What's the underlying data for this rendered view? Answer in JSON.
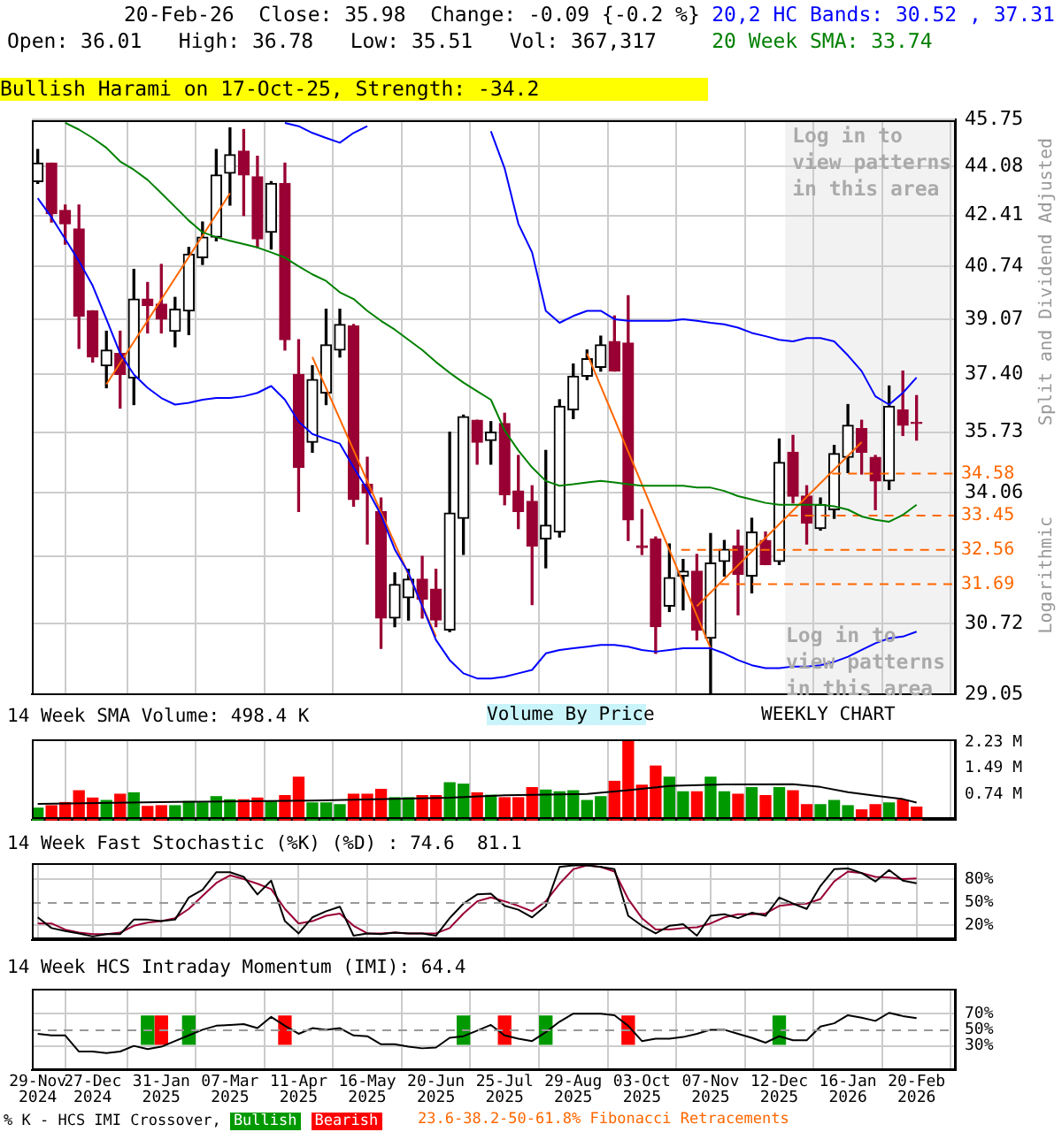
{
  "chart_data": [
    {
      "type": "candlestick",
      "title": "20-Feb-26  Close: 35.98  Change: -0.09 {-0.2 %}",
      "subtitle": "Open: 36.01   High: 36.78   Low: 35.51   Vol: 367,317",
      "ylabel": "Split and Dividend Adjusted",
      "annotations": [
        "Bullish Harami on 17-Oct-25, Strength: -34.2",
        "Logarithmic",
        "Log in to view patterns in this area",
        "Volume By Price",
        "WEEKLY CHART",
        {
          "text": "34.58",
          "x": "2026-03-12",
          "y": 34.58
        },
        {
          "text": "33.45",
          "x": "2026-03-12",
          "y": 33.45
        },
        {
          "text": "32.56",
          "x": "2026-03-12",
          "y": 32.56
        },
        {
          "text": "31.69",
          "x": "2026-03-12",
          "y": 31.69
        }
      ],
      "x": [
        "2024-11-29",
        "2024-12-06",
        "2024-12-13",
        "2024-12-20",
        "2024-12-27",
        "2025-01-03",
        "2025-01-10",
        "2025-01-17",
        "2025-01-24",
        "2025-01-31",
        "2025-02-07",
        "2025-02-14",
        "2025-02-21",
        "2025-02-28",
        "2025-03-07",
        "2025-03-14",
        "2025-03-21",
        "2025-03-28",
        "2025-04-04",
        "2025-04-11",
        "2025-04-18",
        "2025-04-25",
        "2025-05-02",
        "2025-05-09",
        "2025-05-16",
        "2025-05-23",
        "2025-05-30",
        "2025-06-06",
        "2025-06-13",
        "2025-06-20",
        "2025-06-27",
        "2025-07-04",
        "2025-07-11",
        "2025-07-18",
        "2025-07-25",
        "2025-08-01",
        "2025-08-08",
        "2025-08-15",
        "2025-08-22",
        "2025-08-29",
        "2025-09-05",
        "2025-09-12",
        "2025-09-19",
        "2025-09-26",
        "2025-10-03",
        "2025-10-10",
        "2025-10-17",
        "2025-10-24",
        "2025-10-31",
        "2025-11-07",
        "2025-11-14",
        "2025-11-21",
        "2025-11-28",
        "2025-12-05",
        "2025-12-12",
        "2025-12-19",
        "2025-12-26",
        "2026-01-02",
        "2026-01-09",
        "2026-01-16",
        "2026-01-23",
        "2026-01-30",
        "2026-02-06",
        "2026-02-13",
        "2026-02-20"
      ],
      "ohlc": [
        [
          43.56,
          44.68,
          43.5,
          44.2
        ],
        [
          44.2,
          44.2,
          42.19,
          42.47
        ],
        [
          42.58,
          42.76,
          41.46,
          42.13
        ],
        [
          41.96,
          42.76,
          38.18,
          39.17
        ],
        [
          39.33,
          39.33,
          37.77,
          37.92
        ],
        [
          37.66,
          38.7,
          37.01,
          38.13
        ],
        [
          38.03,
          38.7,
          36.42,
          37.4
        ],
        [
          37.3,
          40.64,
          36.52,
          39.7
        ],
        [
          39.7,
          40.22,
          38.65,
          39.49
        ],
        [
          39.54,
          40.8,
          38.65,
          39.07
        ],
        [
          38.7,
          39.75,
          38.23,
          39.38
        ],
        [
          39.33,
          41.35,
          38.6,
          41.13
        ],
        [
          41.02,
          42.19,
          40.8,
          41.69
        ],
        [
          41.69,
          44.68,
          41.57,
          43.79
        ],
        [
          43.85,
          45.45,
          42.76,
          44.5
        ],
        [
          44.62,
          45.39,
          42.41,
          43.79
        ],
        [
          43.73,
          44.44,
          41.35,
          41.63
        ],
        [
          41.85,
          43.56,
          41.3,
          43.5
        ],
        [
          43.5,
          44.2,
          38.13,
          38.44
        ],
        [
          37.4,
          38.44,
          33.56,
          34.75
        ],
        [
          35.45,
          37.66,
          35.17,
          37.25
        ],
        [
          36.86,
          39.38,
          36.52,
          38.29
        ],
        [
          38.13,
          39.38,
          37.92,
          38.91
        ],
        [
          38.86,
          38.91,
          33.7,
          33.88
        ],
        [
          34.29,
          35.03,
          32.71,
          34.06
        ],
        [
          33.56,
          33.92,
          30.12,
          30.85
        ],
        [
          30.85,
          31.97,
          30.64,
          31.68
        ],
        [
          31.35,
          32.06,
          30.8,
          31.81
        ],
        [
          31.81,
          32.39,
          30.85,
          31.31
        ],
        [
          31.56,
          32.06,
          30.64,
          30.8
        ],
        [
          30.56,
          35.73,
          30.52,
          33.52
        ],
        [
          33.38,
          36.22,
          32.44,
          36.17
        ],
        [
          36.07,
          36.07,
          34.84,
          35.45
        ],
        [
          35.5,
          36.03,
          34.84,
          35.73
        ],
        [
          35.98,
          36.27,
          33.74,
          34.01
        ],
        [
          34.11,
          35.08,
          33.11,
          33.56
        ],
        [
          33.83,
          34.25,
          31.18,
          32.66
        ],
        [
          32.84,
          35.22,
          32.1,
          33.2
        ],
        [
          33.02,
          36.66,
          32.89,
          36.47
        ],
        [
          36.37,
          37.71,
          36.12,
          37.35
        ],
        [
          37.35,
          38.13,
          37.25,
          37.87
        ],
        [
          37.61,
          38.55,
          37.5,
          38.29
        ],
        [
          38.39,
          39.17,
          37.5,
          37.5
        ],
        [
          38.34,
          39.8,
          32.8,
          33.34
        ],
        [
          32.66,
          33.61,
          32.44,
          32.62
        ],
        [
          32.84,
          32.89,
          30.0,
          30.64
        ],
        [
          31.14,
          32.71,
          31.01,
          31.85
        ],
        [
          31.89,
          32.31,
          31.05,
          32.01
        ],
        [
          32.01,
          32.44,
          30.32,
          30.56
        ],
        [
          30.36,
          32.98,
          29.05,
          32.22
        ],
        [
          32.26,
          32.8,
          31.89,
          32.57
        ],
        [
          32.66,
          33.07,
          30.93,
          31.93
        ],
        [
          31.89,
          33.38,
          31.47,
          33.02
        ],
        [
          32.8,
          33.02,
          32.18,
          32.18
        ],
        [
          32.26,
          35.54,
          32.18,
          34.89
        ],
        [
          35.17,
          35.64,
          33.79,
          33.97
        ],
        [
          33.97,
          34.25,
          32.71,
          33.25
        ],
        [
          33.11,
          33.92,
          33.07,
          33.74
        ],
        [
          33.61,
          35.36,
          33.38,
          35.13
        ],
        [
          35.03,
          36.52,
          34.61,
          35.93
        ],
        [
          35.83,
          36.07,
          34.57,
          35.17
        ],
        [
          35.03,
          35.08,
          33.61,
          34.38
        ],
        [
          34.38,
          37.06,
          34.15,
          36.47
        ],
        [
          36.37,
          37.5,
          35.64,
          35.93
        ],
        [
          36.01,
          36.78,
          35.51,
          35.98
        ]
      ],
      "colors": [
        "#000000",
        "#990033",
        "#990033",
        "#990033",
        "#990033",
        "#000000",
        "#990033",
        "#000000",
        "#990033",
        "#990033",
        "#000000",
        "#000000",
        "#000000",
        "#000000",
        "#000000",
        "#990033",
        "#990033",
        "#000000",
        "#990033",
        "#990033",
        "#000000",
        "#000000",
        "#000000",
        "#990033",
        "#990033",
        "#990033",
        "#000000",
        "#000000",
        "#990033",
        "#990033",
        "#000000",
        "#000000",
        "#990033",
        "#000000",
        "#990033",
        "#990033",
        "#990033",
        "#000000",
        "#000000",
        "#000000",
        "#000000",
        "#000000",
        "#990033",
        "#990033",
        "#990033",
        "#990033",
        "#000000",
        "#000000",
        "#990033",
        "#000000",
        "#000000",
        "#990033",
        "#000000",
        "#990033",
        "#000000",
        "#990033",
        "#990033",
        "#000000",
        "#000000",
        "#000000",
        "#990033",
        "#990033",
        "#000000",
        "#990033",
        "#990033"
      ],
      "series": [
        {
          "type": "line",
          "name": "20,2 HC Bands: 30.52 , 37.31",
          "color": "#0000ff",
          "values": [
            null,
            null,
            null,
            null,
            null,
            null,
            null,
            null,
            null,
            null,
            null,
            null,
            null,
            null,
            null,
            null,
            null,
            null,
            45.63,
            45.51,
            45.27,
            45.09,
            44.92,
            45.27,
            45.51,
            null,
            null,
            null,
            null,
            null,
            null,
            null,
            null,
            45.33,
            44.02,
            42.13,
            41.19,
            39.33,
            38.96,
            39.17,
            39.33,
            39.33,
            39.07,
            39.02,
            39.02,
            39.02,
            39.02,
            39.07,
            39.02,
            38.96,
            38.91,
            38.81,
            38.65,
            38.55,
            38.44,
            38.39,
            38.49,
            38.49,
            38.39,
            37.97,
            37.5,
            36.76,
            36.52,
            36.86,
            37.31
          ]
        },
        {
          "type": "line",
          "color": "#0000ff",
          "values": [
            42.99,
            42.35,
            41.63,
            40.91,
            40.12,
            39.07,
            38.03,
            37.4,
            37.01,
            36.71,
            36.52,
            36.57,
            36.66,
            36.71,
            36.71,
            36.76,
            36.86,
            37.06,
            36.66,
            36.03,
            35.68,
            35.54,
            35.41,
            34.75,
            34.15,
            33.47,
            32.57,
            31.97,
            31.14,
            30.32,
            29.84,
            29.53,
            29.41,
            29.41,
            29.45,
            29.53,
            29.61,
            30.0,
            30.08,
            30.12,
            30.16,
            30.2,
            30.2,
            30.16,
            30.08,
            30.04,
            30.08,
            30.12,
            30.12,
            30.12,
            30.0,
            29.84,
            29.72,
            29.65,
            29.65,
            29.69,
            29.69,
            29.72,
            29.8,
            29.92,
            30.08,
            30.24,
            30.36,
            30.4,
            30.52
          ]
        },
        {
          "type": "line",
          "name": "20 Week SMA: 33.74",
          "color": "#008000",
          "values": [
            null,
            null,
            45.63,
            45.39,
            45.09,
            44.74,
            44.26,
            43.97,
            43.62,
            43.16,
            42.7,
            42.24,
            41.85,
            41.69,
            41.57,
            41.46,
            41.35,
            41.19,
            41.02,
            40.74,
            40.48,
            40.27,
            39.91,
            39.7,
            39.33,
            39.02,
            38.75,
            38.44,
            38.13,
            37.77,
            37.45,
            37.16,
            36.91,
            36.66,
            35.78,
            35.22,
            34.75,
            34.38,
            34.25,
            34.29,
            34.34,
            34.38,
            34.34,
            34.29,
            34.25,
            34.25,
            34.25,
            34.25,
            34.2,
            34.2,
            34.11,
            33.97,
            33.88,
            33.79,
            33.74,
            33.74,
            33.74,
            33.74,
            33.7,
            33.61,
            33.43,
            33.34,
            33.29,
            33.47,
            33.74
          ]
        },
        {
          "type": "line",
          "color": "#ff6600",
          "x": [
            "2025-01-03",
            "2025-03-07"
          ],
          "values": [
            37.11,
            43.16
          ]
        },
        {
          "type": "line",
          "color": "#ff6600",
          "x": [
            "2025-04-18",
            "2025-06-20"
          ],
          "values": [
            37.92,
            30.4
          ]
        },
        {
          "type": "line",
          "color": "#ff6600",
          "x": [
            "2025-09-05",
            "2025-11-07"
          ],
          "values": [
            38.03,
            30.12
          ]
        },
        {
          "type": "line",
          "color": "#ff6600",
          "x": [
            "2025-10-31",
            "2026-01-23"
          ],
          "values": [
            31.14,
            35.45
          ]
        },
        {
          "type": "line",
          "color": "#ff6600",
          "line_style": "dashed",
          "x": [
            "2026-01-08",
            "2026-03-12"
          ],
          "values": [
            34.58,
            34.58
          ]
        },
        {
          "type": "line",
          "color": "#ff6600",
          "line_style": "dashed",
          "x": [
            "2025-12-17",
            "2026-03-12"
          ],
          "values": [
            33.45,
            33.45
          ]
        },
        {
          "type": "line",
          "color": "#ff6600",
          "line_style": "dashed",
          "x": [
            "2025-10-23",
            "2026-03-12"
          ],
          "values": [
            32.56,
            32.56
          ]
        },
        {
          "type": "line",
          "color": "#ff6600",
          "line_style": "dashed",
          "x": [
            "2025-11-12",
            "2026-03-12"
          ],
          "values": [
            31.69,
            31.69
          ]
        }
      ],
      "ylim": [
        29.05,
        45.75
      ],
      "yticks": [
        29.05,
        30.72,
        {
          "value": 32.39,
          "label": null
        },
        34.06,
        35.73,
        {
          "value": 37.4,
          "label": "37.40"
        },
        39.07,
        40.74,
        42.41,
        44.08,
        45.75
      ],
      "log": true,
      "xlim": [
        "2024-11-26",
        "2026-03-12"
      ],
      "xticks": [
        {
          "value": "2024-11-29",
          "label": null
        },
        {
          "value": "2024-12-27",
          "label": null
        },
        {
          "value": "2025-01-31",
          "label": null
        },
        {
          "value": "2025-03-07",
          "label": null
        },
        {
          "value": "2025-04-11",
          "label": null
        },
        {
          "value": "2025-05-16",
          "label": null
        },
        {
          "value": "2025-06-20",
          "label": null
        },
        {
          "value": "2025-07-25",
          "label": null
        },
        {
          "value": "2025-08-29",
          "label": null
        },
        {
          "value": "2025-10-03",
          "label": null
        },
        {
          "value": "2025-11-07",
          "label": null
        },
        {
          "value": "2025-12-12",
          "label": null
        },
        {
          "value": "2026-01-16",
          "label": null
        },
        {
          "value": "2026-02-20",
          "label": null
        }
      ],
      "grid": true,
      "tick_labels": "y",
      "legend": "top right",
      "bands": [
        {
          "axis": "x",
          "from": "2025-12-15",
          "to": "2026-03-12",
          "label": "Log in to view patterns in this area",
          "color": "#f2f2f2"
        }
      ]
    },
    {
      "type": "bar",
      "title": "14 Week SMA Volume: 498.4 K",
      "x": [
        "2024-11-29",
        "2024-12-06",
        "2024-12-13",
        "2024-12-20",
        "2024-12-27",
        "2025-01-03",
        "2025-01-10",
        "2025-01-17",
        "2025-01-24",
        "2025-01-31",
        "2025-02-07",
        "2025-02-14",
        "2025-02-21",
        "2025-02-28",
        "2025-03-07",
        "2025-03-14",
        "2025-03-21",
        "2025-03-28",
        "2025-04-04",
        "2025-04-11",
        "2025-04-18",
        "2025-04-25",
        "2025-05-02",
        "2025-05-09",
        "2025-05-16",
        "2025-05-23",
        "2025-05-30",
        "2025-06-06",
        "2025-06-13",
        "2025-06-20",
        "2025-06-27",
        "2025-07-04",
        "2025-07-11",
        "2025-07-18",
        "2025-07-25",
        "2025-08-01",
        "2025-08-08",
        "2025-08-15",
        "2025-08-22",
        "2025-08-29",
        "2025-09-05",
        "2025-09-12",
        "2025-09-19",
        "2025-09-26",
        "2025-10-03",
        "2025-10-10",
        "2025-10-17",
        "2025-10-24",
        "2025-10-31",
        "2025-11-07",
        "2025-11-14",
        "2025-11-21",
        "2025-11-28",
        "2025-12-05",
        "2025-12-12",
        "2025-12-19",
        "2025-12-26",
        "2026-01-02",
        "2026-01-09",
        "2026-01-16",
        "2026-01-23",
        "2026-01-30",
        "2026-02-06",
        "2026-02-13",
        "2026-02-20"
      ],
      "values": [
        0.34,
        0.41,
        0.5,
        0.84,
        0.63,
        0.56,
        0.74,
        0.78,
        0.39,
        0.41,
        0.41,
        0.53,
        0.49,
        0.67,
        0.58,
        0.58,
        0.63,
        0.53,
        0.7,
        1.23,
        0.49,
        0.49,
        0.44,
        0.74,
        0.74,
        0.88,
        0.64,
        0.64,
        0.7,
        0.7,
        1.07,
        1.03,
        0.78,
        0.71,
        0.64,
        0.64,
        0.93,
        0.86,
        0.81,
        0.84,
        0.56,
        0.67,
        1.11,
        2.27,
        1.0,
        1.55,
        1.23,
        0.81,
        0.81,
        1.23,
        0.81,
        0.74,
        0.93,
        0.7,
        0.93,
        0.84,
        0.44,
        0.44,
        0.56,
        0.41,
        0.29,
        0.44,
        0.49,
        0.57,
        0.37
      ],
      "colors": [
        "#009900",
        "#ff0000",
        "#ff0000",
        "#ff0000",
        "#ff0000",
        "#009900",
        "#ff0000",
        "#009900",
        "#ff0000",
        "#ff0000",
        "#009900",
        "#009900",
        "#009900",
        "#009900",
        "#009900",
        "#ff0000",
        "#ff0000",
        "#009900",
        "#ff0000",
        "#ff0000",
        "#009900",
        "#009900",
        "#009900",
        "#ff0000",
        "#ff0000",
        "#ff0000",
        "#009900",
        "#009900",
        "#ff0000",
        "#ff0000",
        "#009900",
        "#009900",
        "#ff0000",
        "#009900",
        "#ff0000",
        "#ff0000",
        "#ff0000",
        "#009900",
        "#009900",
        "#009900",
        "#009900",
        "#009900",
        "#ff0000",
        "#ff0000",
        "#ff0000",
        "#ff0000",
        "#009900",
        "#009900",
        "#ff0000",
        "#009900",
        "#009900",
        "#ff0000",
        "#009900",
        "#ff0000",
        "#009900",
        "#ff0000",
        "#ff0000",
        "#009900",
        "#009900",
        "#009900",
        "#ff0000",
        "#ff0000",
        "#009900",
        "#ff0000",
        "#ff0000"
      ],
      "series": [
        {
          "type": "line",
          "color": "#000000",
          "x": [
            "2024-11-29",
            "2025-02-07",
            "2025-04-18",
            "2025-06-27",
            "2025-07-25",
            "2025-09-05",
            "2025-09-26",
            "2025-10-17",
            "2025-11-14",
            "2025-12-19",
            "2026-01-02",
            "2026-01-16",
            "2026-01-30",
            "2026-02-13",
            "2026-02-20"
          ],
          "values": [
            0.46,
            0.52,
            0.56,
            0.64,
            0.71,
            0.75,
            0.86,
            0.98,
            1.02,
            1.03,
            0.95,
            0.8,
            0.7,
            0.6,
            0.5
          ]
        }
      ],
      "ylim": [
        0,
        2.3
      ],
      "yticks": [
        {
          "value": 0.74,
          "label": "0.74 M"
        },
        {
          "value": 1.49,
          "label": "1.49 M"
        },
        {
          "value": 2.23,
          "label": "2.23 M"
        }
      ],
      "xlim": [
        "2024-11-26",
        "2026-03-12"
      ],
      "xticks": [
        {
          "value": "2024-11-29",
          "label": null
        },
        {
          "value": "2024-12-27",
          "label": null
        },
        {
          "value": "2025-01-31",
          "label": null
        },
        {
          "value": "2025-03-07",
          "label": null
        },
        {
          "value": "2025-04-11",
          "label": null
        },
        {
          "value": "2025-05-16",
          "label": null
        },
        {
          "value": "2025-06-20",
          "label": null
        },
        {
          "value": "2025-07-25",
          "label": null
        },
        {
          "value": "2025-08-29",
          "label": null
        },
        {
          "value": "2025-10-03",
          "label": null
        },
        {
          "value": "2025-11-07",
          "label": null
        },
        {
          "value": "2025-12-12",
          "label": null
        },
        {
          "value": "2026-01-16",
          "label": null
        },
        {
          "value": "2026-02-20",
          "label": null
        }
      ],
      "grid": "x",
      "tick_labels": "y"
    },
    {
      "type": "line",
      "title": "14 Week Fast Stochastic (%K) (%D) : 74.6  81.1",
      "x": [
        "2024-11-29",
        "2024-12-06",
        "2024-12-13",
        "2024-12-20",
        "2024-12-27",
        "2025-01-03",
        "2025-01-10",
        "2025-01-17",
        "2025-01-24",
        "2025-01-31",
        "2025-02-07",
        "2025-02-14",
        "2025-02-21",
        "2025-02-28",
        "2025-03-07",
        "2025-03-14",
        "2025-03-21",
        "2025-03-28",
        "2025-04-04",
        "2025-04-11",
        "2025-04-18",
        "2025-04-25",
        "2025-05-02",
        "2025-05-09",
        "2025-05-16",
        "2025-05-23",
        "2025-05-30",
        "2025-06-06",
        "2025-06-13",
        "2025-06-20",
        "2025-06-27",
        "2025-07-04",
        "2025-07-11",
        "2025-07-18",
        "2025-07-25",
        "2025-08-01",
        "2025-08-08",
        "2025-08-15",
        "2025-08-22",
        "2025-08-29",
        "2025-09-05",
        "2025-09-12",
        "2025-09-19",
        "2025-09-26",
        "2025-10-03",
        "2025-10-10",
        "2025-10-17",
        "2025-10-24",
        "2025-10-31",
        "2025-11-07",
        "2025-11-14",
        "2025-11-21",
        "2025-11-28",
        "2025-12-05",
        "2025-12-12",
        "2025-12-19",
        "2025-12-26",
        "2026-01-02",
        "2026-01-09",
        "2026-01-16",
        "2026-01-23",
        "2026-01-30",
        "2026-02-06",
        "2026-02-13",
        "2026-02-20"
      ],
      "series": [
        {
          "type": "line",
          "color": "#000000",
          "values": [
            30,
            16,
            12,
            9,
            5,
            8,
            8,
            27,
            27,
            25,
            27,
            56,
            66,
            89,
            89,
            83,
            60,
            78,
            25,
            9,
            30,
            38,
            44,
            6,
            9,
            8,
            10,
            9,
            9,
            6,
            29,
            48,
            60,
            61,
            45,
            40,
            30,
            45,
            96,
            98,
            98,
            96,
            93,
            32,
            19,
            9,
            19,
            21,
            6,
            32,
            34,
            29,
            36,
            32,
            56,
            48,
            41,
            71,
            93,
            94,
            88,
            77,
            92,
            78,
            74.6
          ]
        },
        {
          "type": "line",
          "color": "#990033",
          "values": [
            22,
            22,
            14,
            10,
            8,
            8,
            10,
            19,
            23,
            25,
            29,
            41,
            58,
            75,
            85,
            80,
            74,
            67,
            41,
            22,
            25,
            32,
            35,
            19,
            9,
            9,
            10,
            9,
            9,
            9,
            16,
            35,
            51,
            56,
            51,
            45,
            38,
            51,
            74,
            93,
            98,
            96,
            90,
            54,
            29,
            14,
            14,
            16,
            17,
            22,
            30,
            34,
            34,
            35,
            45,
            47,
            48,
            54,
            77,
            90,
            88,
            83,
            82,
            80,
            81.1
          ]
        }
      ],
      "ylim": [
        0,
        100
      ],
      "yticks": [
        {
          "value": 20,
          "label": "20%"
        },
        {
          "value": 50,
          "label": "50%"
        },
        {
          "value": 80,
          "label": "80%"
        }
      ],
      "ref_lines": [
        {
          "axis": "y",
          "value": 50,
          "line_style": "dashed",
          "color": "#999999"
        }
      ],
      "xlim": [
        "2024-11-26",
        "2026-03-12"
      ],
      "xticks": [
        {
          "value": "2024-11-29",
          "label": null
        },
        {
          "value": "2024-12-27",
          "label": null
        },
        {
          "value": "2025-01-31",
          "label": null
        },
        {
          "value": "2025-03-07",
          "label": null
        },
        {
          "value": "2025-04-11",
          "label": null
        },
        {
          "value": "2025-05-16",
          "label": null
        },
        {
          "value": "2025-06-20",
          "label": null
        },
        {
          "value": "2025-07-25",
          "label": null
        },
        {
          "value": "2025-08-29",
          "label": null
        },
        {
          "value": "2025-10-03",
          "label": null
        },
        {
          "value": "2025-11-07",
          "label": null
        },
        {
          "value": "2025-12-12",
          "label": null
        },
        {
          "value": "2026-01-16",
          "label": null
        },
        {
          "value": "2026-02-20",
          "label": null
        }
      ],
      "grid": true,
      "tick_labels": "y"
    },
    {
      "type": "line",
      "title": "14 Week HCS Intraday Momentum (IMI): 64.4",
      "x": [
        "2024-11-29",
        "2024-12-06",
        "2024-12-13",
        "2024-12-20",
        "2024-12-27",
        "2025-01-03",
        "2025-01-10",
        "2025-01-17",
        "2025-01-24",
        "2025-01-31",
        "2025-02-07",
        "2025-02-14",
        "2025-02-21",
        "2025-02-28",
        "2025-03-07",
        "2025-03-14",
        "2025-03-21",
        "2025-03-28",
        "2025-04-04",
        "2025-04-11",
        "2025-04-18",
        "2025-04-25",
        "2025-05-02",
        "2025-05-09",
        "2025-05-16",
        "2025-05-23",
        "2025-05-30",
        "2025-06-06",
        "2025-06-13",
        "2025-06-20",
        "2025-06-27",
        "2025-07-04",
        "2025-07-11",
        "2025-07-18",
        "2025-07-25",
        "2025-08-01",
        "2025-08-08",
        "2025-08-15",
        "2025-08-22",
        "2025-08-29",
        "2025-09-05",
        "2025-09-12",
        "2025-09-19",
        "2025-09-26",
        "2025-10-03",
        "2025-10-10",
        "2025-10-17",
        "2025-10-24",
        "2025-10-31",
        "2025-11-07",
        "2025-11-14",
        "2025-11-21",
        "2025-11-28",
        "2025-12-05",
        "2025-12-12",
        "2025-12-19",
        "2025-12-26",
        "2026-01-02",
        "2026-01-09",
        "2026-01-16",
        "2026-01-23",
        "2026-01-30",
        "2026-02-06",
        "2026-02-13",
        "2026-02-20"
      ],
      "series": [
        {
          "type": "line",
          "color": "#000000",
          "values": [
            45,
            43,
            43,
            23,
            23,
            21,
            23,
            30,
            26,
            29,
            36,
            43,
            50,
            55,
            56,
            57,
            52,
            66,
            55,
            45,
            52,
            50,
            52,
            43,
            42,
            32,
            32,
            29,
            27,
            28,
            40,
            42,
            49,
            56,
            43,
            39,
            36,
            47,
            60,
            70,
            70,
            70,
            68,
            55,
            36,
            39,
            39,
            41,
            45,
            50,
            50,
            45,
            40,
            34,
            42,
            37,
            37,
            54,
            58,
            68,
            65,
            61,
            71,
            67,
            64.4
          ]
        },
        {
          "type": "bar",
          "name": "Bullish",
          "color": "#009900",
          "x": [
            "2025-01-24",
            "2025-02-14",
            "2025-07-04",
            "2025-08-15",
            "2025-12-12"
          ],
          "base": [
            32,
            32,
            32,
            32,
            32
          ],
          "values": [
            35,
            35,
            35,
            35,
            35
          ]
        },
        {
          "type": "bar",
          "name": "Bearish",
          "color": "#ff0000",
          "x": [
            "2025-01-31",
            "2025-04-04",
            "2025-07-25",
            "2025-09-26"
          ],
          "base": [
            32,
            32,
            32,
            32
          ],
          "values": [
            35,
            35,
            35,
            35
          ]
        }
      ],
      "ylim": [
        0,
        100
      ],
      "yticks": [
        {
          "value": 30,
          "label": "30%"
        },
        {
          "value": 50,
          "label": "50%"
        },
        {
          "value": 70,
          "label": "70%"
        }
      ],
      "ref_lines": [
        {
          "axis": "y",
          "value": 50,
          "line_style": "dashed",
          "color": "#999999"
        }
      ],
      "xlim": [
        "2024-11-26",
        "2026-03-12"
      ],
      "xticks": [
        {
          "value": "2024-11-29",
          "label": "29-Nov 2024"
        },
        {
          "value": "2024-12-27",
          "label": "27-Dec 2024"
        },
        {
          "value": "2025-01-31",
          "label": "31-Jan 2025"
        },
        {
          "value": "2025-03-07",
          "label": "07-Mar 2025"
        },
        {
          "value": "2025-04-11",
          "label": "11-Apr 2025"
        },
        {
          "value": "2025-05-16",
          "label": "16-May 2025"
        },
        {
          "value": "2025-06-20",
          "label": "20-Jun 2025"
        },
        {
          "value": "2025-07-25",
          "label": "25-Jul 2025"
        },
        {
          "value": "2025-08-29",
          "label": "29-Aug 2025"
        },
        {
          "value": "2025-10-03",
          "label": "03-Oct 2025"
        },
        {
          "value": "2025-11-07",
          "label": "07-Nov 2025"
        },
        {
          "value": "2025-12-12",
          "label": "12-Dec 2025"
        },
        {
          "value": "2026-01-16",
          "label": "16-Jan 2026"
        },
        {
          "value": "2026-02-20",
          "label": "20-Feb 2026"
        }
      ],
      "grid": true,
      "legend": "bottom",
      "legend_title": "% K - HCS IMI Crossover,",
      "annotations": [
        "23.6-38.2-50-61.8% Fibonacci Retracements"
      ]
    }
  ]
}
